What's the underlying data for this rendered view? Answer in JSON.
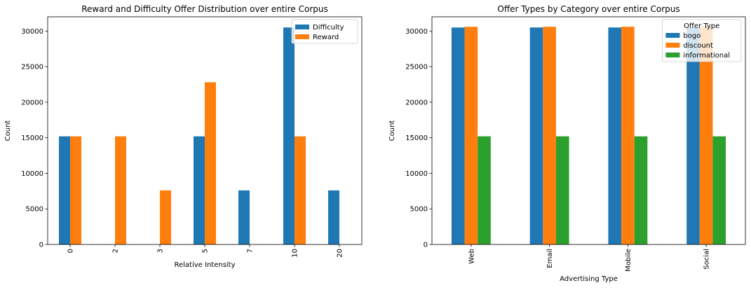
{
  "chart_data": [
    {
      "type": "bar",
      "title": "Reward and Difficulty Offer Distribution over entire Corpus",
      "xlabel": "Relative Intensity",
      "ylabel": "Count",
      "categories": [
        "0",
        "2",
        "3",
        "5",
        "7",
        "10",
        "20"
      ],
      "series": [
        {
          "name": "Difficulty",
          "color": "#1f77b4",
          "values": [
            15200,
            0,
            0,
            15200,
            7600,
            30500,
            7600
          ]
        },
        {
          "name": "Reward",
          "color": "#ff7f0e",
          "values": [
            15200,
            15200,
            7600,
            22800,
            0,
            15200,
            0
          ]
        }
      ],
      "ylim": [
        0,
        32000
      ],
      "yticks": [
        0,
        5000,
        10000,
        15000,
        20000,
        25000,
        30000
      ],
      "legend_title": "",
      "legend_position": "top-right",
      "grid": false,
      "xtick_rotation": 90
    },
    {
      "type": "bar",
      "title": "Offer Types by Category over entire Corpus",
      "xlabel": "Advertising Type",
      "ylabel": "Count",
      "categories": [
        "Web",
        "Email",
        "Mobile",
        "Social"
      ],
      "series": [
        {
          "name": "bogo",
          "color": "#1f77b4",
          "values": [
            30500,
            30500,
            30500,
            30500
          ]
        },
        {
          "name": "discount",
          "color": "#ff7f0e",
          "values": [
            30600,
            30600,
            30600,
            30600
          ]
        },
        {
          "name": "informational",
          "color": "#2ca02c",
          "values": [
            15200,
            15200,
            15200,
            15200
          ]
        }
      ],
      "ylim": [
        0,
        32000
      ],
      "yticks": [
        0,
        5000,
        10000,
        15000,
        20000,
        25000,
        30000
      ],
      "legend_title": "Offer Type",
      "legend_position": "top-right",
      "grid": false,
      "xtick_rotation": 90
    }
  ]
}
